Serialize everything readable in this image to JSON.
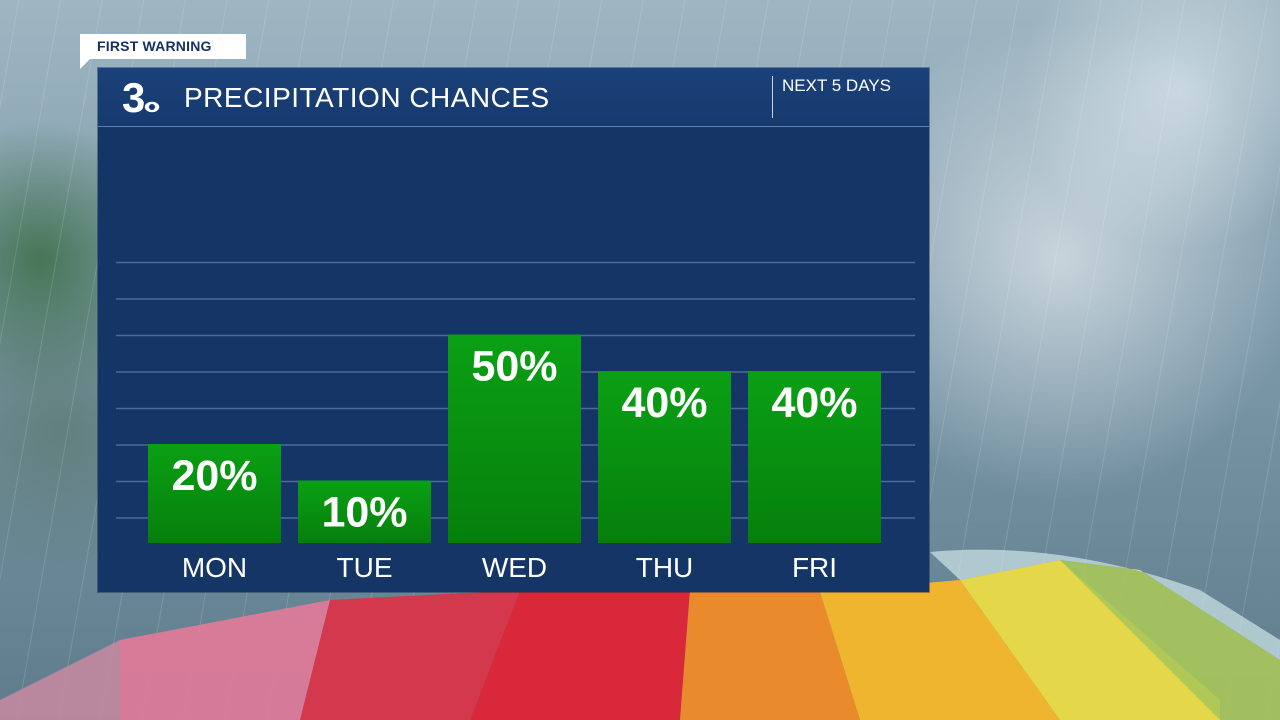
{
  "brand": {
    "tag": "FIRST WARNING",
    "logo_icon": "channel-3-cbs-eye-logo"
  },
  "header": {
    "title": "PRECIPITATION CHANCES",
    "subtitle": "NEXT 5 DAYS"
  },
  "colors": {
    "panel": "#143566",
    "bar_top": "#0aa014",
    "bar_bottom": "#067f0c",
    "grid": "#4d6b9c",
    "text": "#ffffff"
  },
  "chart_data": {
    "type": "bar",
    "title": "PRECIPITATION CHANCES",
    "subtitle": "NEXT 5 DAYS",
    "categories": [
      "MON",
      "TUE",
      "WED",
      "THU",
      "FRI"
    ],
    "values": [
      20,
      10,
      50,
      40,
      40
    ],
    "labels": [
      "20%",
      "10%",
      "50%",
      "40%",
      "40%"
    ],
    "ylim": [
      0,
      70
    ],
    "grid": true
  }
}
